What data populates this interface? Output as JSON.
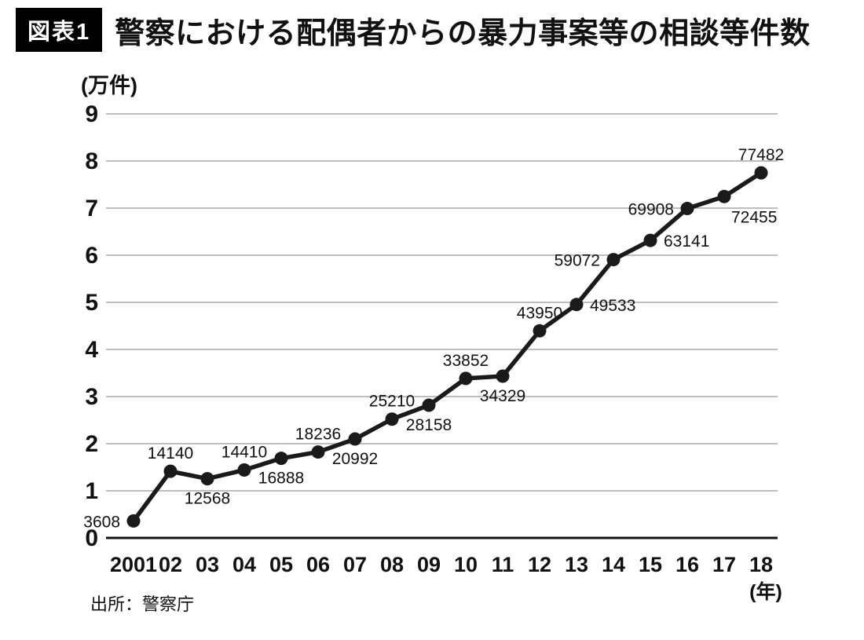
{
  "figure": {
    "badge": "図表1"
  },
  "chart_data": {
    "type": "line",
    "title": "警察における配偶者からの暴力事案等の相談等件数",
    "source": "出所：警察庁",
    "y_unit_label": "(万件)",
    "x_unit_label": "(年)",
    "categories": [
      "2001",
      "02",
      "03",
      "04",
      "05",
      "06",
      "07",
      "08",
      "09",
      "10",
      "11",
      "12",
      "13",
      "14",
      "15",
      "16",
      "17",
      "18"
    ],
    "values": [
      3608,
      14140,
      12568,
      14410,
      16888,
      18236,
      20992,
      25210,
      28158,
      33852,
      34329,
      43950,
      49533,
      59072,
      63141,
      69908,
      72455,
      77482
    ],
    "label_positions": [
      "left",
      "above",
      "below",
      "above",
      "below",
      "above",
      "below",
      "above",
      "below",
      "above",
      "below",
      "above",
      "right",
      "left",
      "right",
      "left",
      "below-right",
      "above"
    ],
    "y_ticks": [
      0,
      1,
      2,
      3,
      4,
      5,
      6,
      7,
      8,
      9
    ],
    "ylim": [
      0,
      9
    ],
    "value_divisor": 10000,
    "grid": true,
    "legend": "none",
    "line_color": "#1a1a1a",
    "grid_color": "#a8a8a8",
    "axis_color": "#111111"
  }
}
